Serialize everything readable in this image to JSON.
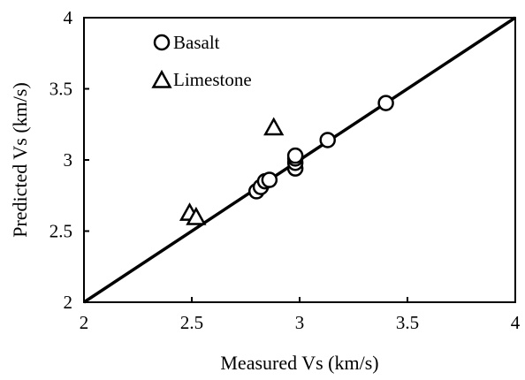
{
  "chart_data": {
    "type": "scatter",
    "title": "",
    "xlabel": "Measured Vs (km/s)",
    "ylabel": "Predicted Vs (km/s)",
    "xlim": [
      2,
      4
    ],
    "ylim": [
      2,
      4
    ],
    "x_ticks": [
      2,
      2.5,
      3,
      3.5,
      4
    ],
    "y_ticks": [
      2,
      2.5,
      3,
      3.5,
      4
    ],
    "x_tick_labels": [
      "2",
      "2.5",
      "3",
      "3.5",
      "4"
    ],
    "y_tick_labels": [
      "2",
      "2.5",
      "3",
      "3.5",
      "4"
    ],
    "grid": false,
    "legend_position": "top-left",
    "reference_line": {
      "x": [
        2,
        4
      ],
      "y": [
        2,
        4
      ]
    },
    "series": [
      {
        "name": "Basalt",
        "marker": "circle",
        "points": [
          {
            "x": 2.8,
            "y": 2.78
          },
          {
            "x": 2.82,
            "y": 2.81
          },
          {
            "x": 2.84,
            "y": 2.85
          },
          {
            "x": 2.86,
            "y": 2.86
          },
          {
            "x": 2.98,
            "y": 2.94
          },
          {
            "x": 2.98,
            "y": 2.98
          },
          {
            "x": 2.98,
            "y": 3.01
          },
          {
            "x": 2.98,
            "y": 3.03
          },
          {
            "x": 3.13,
            "y": 3.14
          },
          {
            "x": 3.4,
            "y": 3.4
          }
        ]
      },
      {
        "name": "Limestone",
        "marker": "triangle",
        "points": [
          {
            "x": 2.49,
            "y": 2.62
          },
          {
            "x": 2.52,
            "y": 2.59
          },
          {
            "x": 2.88,
            "y": 3.22
          }
        ]
      }
    ],
    "colors": {
      "marker_stroke": "#000000",
      "line": "#000000",
      "background": "#ffffff"
    }
  }
}
